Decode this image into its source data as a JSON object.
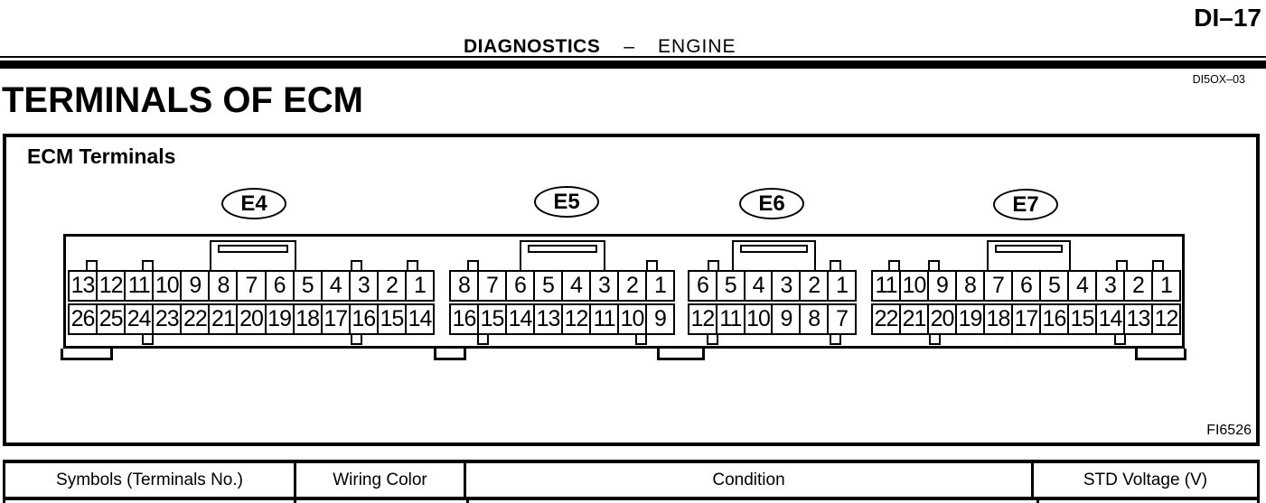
{
  "header": {
    "page_number": "DI–17",
    "section": "DIAGNOSTICS",
    "dash": "–",
    "subsection": "ENGINE",
    "doc_code": "DI5OX–03"
  },
  "title": "TERMINALS OF ECM",
  "diagram": {
    "caption": "ECM Terminals",
    "figure_code": "FI6526",
    "connectors": [
      {
        "label": "E4",
        "top_row": [
          "13",
          "12",
          "11",
          "10",
          "9",
          "8",
          "7",
          "6",
          "5",
          "4",
          "3",
          "2",
          "1"
        ],
        "bottom_row": [
          "26",
          "25",
          "24",
          "23",
          "22",
          "21",
          "20",
          "19",
          "18",
          "17",
          "16",
          "15",
          "14"
        ]
      },
      {
        "label": "E5",
        "top_row": [
          "8",
          "7",
          "6",
          "5",
          "4",
          "3",
          "2",
          "1"
        ],
        "bottom_row": [
          "16",
          "15",
          "14",
          "13",
          "12",
          "11",
          "10",
          "9"
        ]
      },
      {
        "label": "E6",
        "top_row": [
          "6",
          "5",
          "4",
          "3",
          "2",
          "1"
        ],
        "bottom_row": [
          "12",
          "11",
          "10",
          "9",
          "8",
          "7"
        ]
      },
      {
        "label": "E7",
        "top_row": [
          "11",
          "10",
          "9",
          "8",
          "7",
          "6",
          "5",
          "4",
          "3",
          "2",
          "1"
        ],
        "bottom_row": [
          "22",
          "21",
          "20",
          "19",
          "18",
          "17",
          "16",
          "15",
          "14",
          "13",
          "12"
        ]
      }
    ]
  },
  "table": {
    "headers": [
      "Symbols (Terminals No.)",
      "Wiring Color",
      "Condition",
      "STD Voltage (V)"
    ]
  },
  "colors": {
    "ink": "#000000",
    "paper": "#ffffff"
  }
}
